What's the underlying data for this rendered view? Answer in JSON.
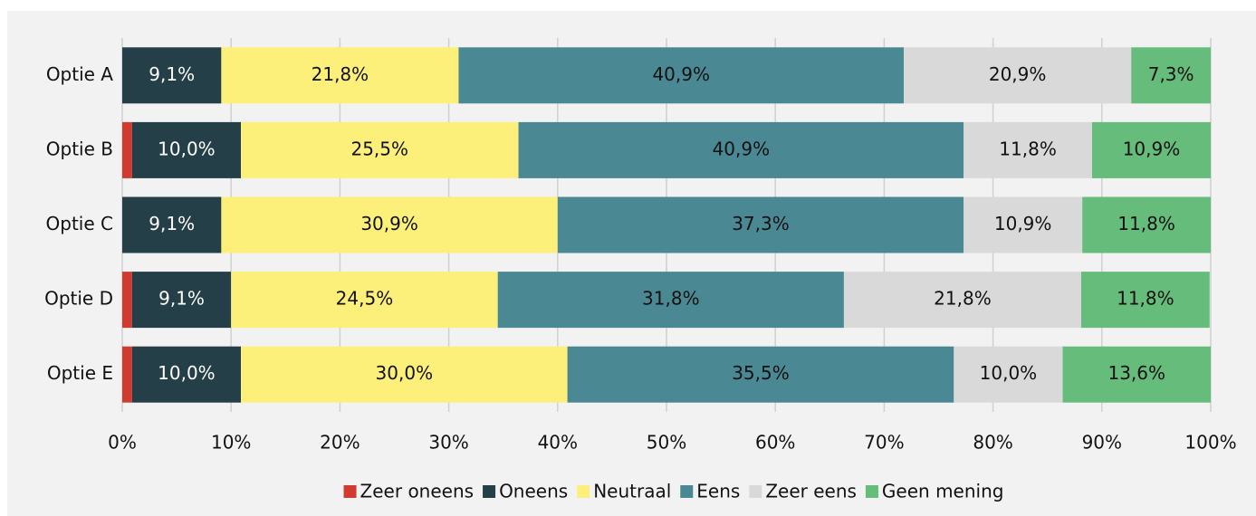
{
  "chart_data": {
    "type": "stacked_barh",
    "categories": [
      "Optie A",
      "Optie B",
      "Optie C",
      "Optie D",
      "Optie E"
    ],
    "series": [
      {
        "name": "Zeer oneens",
        "color": "#d13b2f",
        "values": [
          0,
          0.9,
          0,
          0.9,
          0.9
        ]
      },
      {
        "name": "Oneens",
        "color": "#243f48",
        "values": [
          9.1,
          10.0,
          9.1,
          9.1,
          10.0
        ],
        "value_labels": [
          "9,1%",
          "10,0%",
          "9,1%",
          "9,1%",
          "10,0%"
        ]
      },
      {
        "name": "Neutraal",
        "color": "#fdf07a",
        "values": [
          21.8,
          25.5,
          30.9,
          24.5,
          30.0
        ],
        "value_labels": [
          "21,8%",
          "25,5%",
          "30,9%",
          "24,5%",
          "30,0%"
        ]
      },
      {
        "name": "Eens",
        "color": "#4a8994",
        "values": [
          40.9,
          40.9,
          37.3,
          31.8,
          35.5
        ],
        "value_labels": [
          "40,9%",
          "40,9%",
          "37,3%",
          "31,8%",
          "35,5%"
        ]
      },
      {
        "name": "Zeer eens",
        "color": "#d9d9d9",
        "values": [
          20.9,
          11.8,
          10.9,
          21.8,
          10.0
        ],
        "value_labels": [
          "20,9%",
          "11,8%",
          "10,9%",
          "21,8%",
          "10,0%"
        ]
      },
      {
        "name": "Geen mening",
        "color": "#65bc7b",
        "values": [
          7.3,
          10.9,
          11.8,
          11.8,
          13.6
        ],
        "value_labels": [
          "7,3%",
          "10,9%",
          "11,8%",
          "11,8%",
          "13,6%"
        ]
      }
    ],
    "xlim": [
      0,
      100
    ],
    "xticks": [
      {
        "value": 0,
        "label": "0%"
      },
      {
        "value": 10,
        "label": "10%"
      },
      {
        "value": 20,
        "label": "20%"
      },
      {
        "value": 30,
        "label": "30%"
      },
      {
        "value": 40,
        "label": "40%"
      },
      {
        "value": 50,
        "label": "50%"
      },
      {
        "value": 60,
        "label": "60%"
      },
      {
        "value": 70,
        "label": "70%"
      },
      {
        "value": 80,
        "label": "80%"
      },
      {
        "value": 90,
        "label": "90%"
      },
      {
        "value": 100,
        "label": "100%"
      }
    ],
    "grid": true,
    "legend": "bottom"
  }
}
